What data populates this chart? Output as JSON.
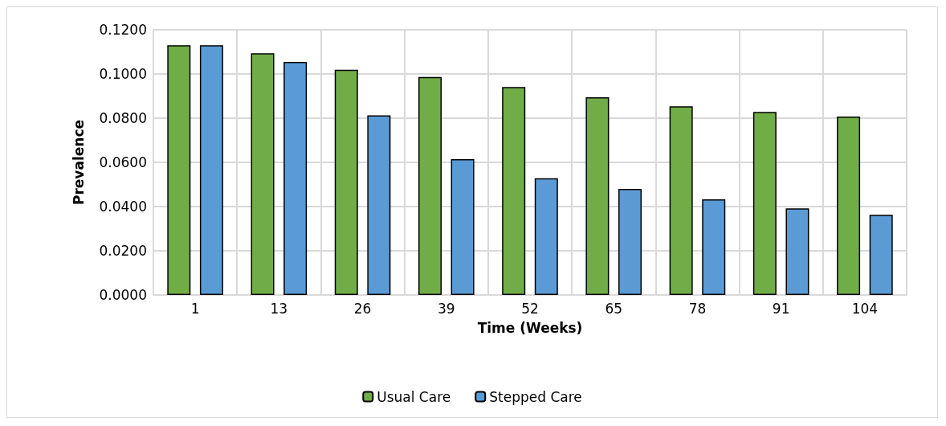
{
  "chart_data": {
    "type": "bar",
    "xlabel": "Time (Weeks)",
    "ylabel": "Prevalence",
    "categories": [
      "1",
      "13",
      "26",
      "39",
      "52",
      "65",
      "78",
      "91",
      "104"
    ],
    "series": [
      {
        "name": "Usual Care",
        "color": "#70ad47",
        "values": [
          0.113,
          0.1094,
          0.1019,
          0.0986,
          0.0941,
          0.0895,
          0.0854,
          0.0828,
          0.0807
        ]
      },
      {
        "name": "Stepped Care",
        "color": "#5b9bd5",
        "values": [
          0.113,
          0.1055,
          0.0813,
          0.0615,
          0.0528,
          0.048,
          0.0433,
          0.0392,
          0.0363
        ]
      }
    ],
    "ylim": [
      0,
      0.12
    ],
    "yticks": [
      {
        "value": 0,
        "label": "0.0000"
      },
      {
        "value": 0.02,
        "label": "0.0200"
      },
      {
        "value": 0.04,
        "label": "0.0400"
      },
      {
        "value": 0.06,
        "label": "0.0600"
      },
      {
        "value": 0.08,
        "label": "0.0800"
      },
      {
        "value": 0.1,
        "label": "0.1000"
      },
      {
        "value": 0.12,
        "label": "0.1200"
      }
    ],
    "grid": true,
    "legend": "bottom"
  }
}
